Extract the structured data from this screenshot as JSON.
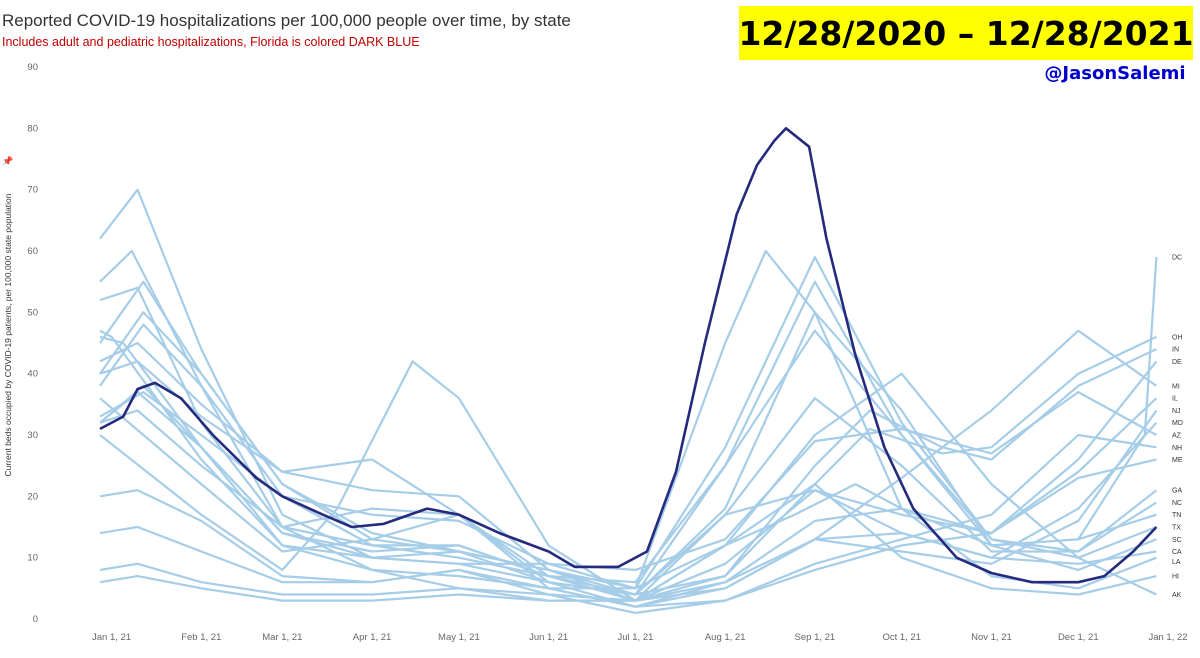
{
  "header": {
    "title": "Reported COVID-19 hospitalizations per 100,000 people over time, by state",
    "subtitle": "Includes adult and pediatric hospitalizations, Florida is colored DARK BLUE",
    "banner": "12/28/2020 – 12/28/2021",
    "handle": "@JasonSalemi"
  },
  "colors": {
    "background_states": "#a6cde8",
    "florida": "#252a7c",
    "banner_bg": "#ffff00",
    "handle": "#0000cc",
    "subtitle": "#c00000"
  },
  "icons": {
    "axis_pin": "pin-icon"
  },
  "chart_data": {
    "type": "line",
    "title": "Reported COVID-19 hospitalizations per 100,000 people over time, by state",
    "subtitle": "Includes adult and pediatric hospitalizations, Florida is colored DARK BLUE",
    "ylabel": "Current beds occupied by COVID-19 patients, per 100,000 state population",
    "ylim": [
      0,
      90
    ],
    "xlim": [
      "2020-12-28",
      "2022-01-01"
    ],
    "y_ticks": [
      0,
      10,
      20,
      30,
      40,
      50,
      60,
      70,
      80,
      90
    ],
    "x_ticks": [
      "Jan 1, 21",
      "Feb 1, 21",
      "Mar 1, 21",
      "Apr 1, 21",
      "May 1, 21",
      "Jun 1, 21",
      "Jul 1, 21",
      "Aug 1, 21",
      "Sep 1, 21",
      "Oct 1, 21",
      "Nov 1, 21",
      "Dec 1, 21",
      "Jan 1, 22"
    ],
    "grid": false,
    "highlight": {
      "name": "FL",
      "x": [
        "2020-12-28",
        "2021-01-05",
        "2021-01-10",
        "2021-01-16",
        "2021-01-25",
        "2021-02-05",
        "2021-02-20",
        "2021-03-01",
        "2021-03-15",
        "2021-03-25",
        "2021-04-05",
        "2021-04-20",
        "2021-05-01",
        "2021-05-15",
        "2021-06-01",
        "2021-06-10",
        "2021-06-25",
        "2021-07-05",
        "2021-07-15",
        "2021-07-25",
        "2021-08-05",
        "2021-08-12",
        "2021-08-18",
        "2021-08-22",
        "2021-08-30",
        "2021-09-05",
        "2021-09-15",
        "2021-09-25",
        "2021-10-05",
        "2021-10-20",
        "2021-11-01",
        "2021-11-15",
        "2021-12-01",
        "2021-12-10",
        "2021-12-20",
        "2021-12-28"
      ],
      "y": [
        31,
        33,
        37.5,
        38.5,
        36,
        30,
        23,
        20,
        17,
        15,
        15.5,
        18,
        17,
        14,
        11,
        8.5,
        8.5,
        11,
        24,
        45,
        66,
        74,
        78,
        80,
        77,
        62,
        43,
        28,
        18,
        10,
        7.5,
        6,
        6,
        7,
        11,
        15
      ]
    },
    "series": [
      {
        "name": "DC",
        "x": [
          "2020-12-28",
          "2021-01-12",
          "2021-02-01",
          "2021-03-01",
          "2021-04-01",
          "2021-05-01",
          "2021-06-01",
          "2021-07-01",
          "2021-08-01",
          "2021-08-25",
          "2021-09-15",
          "2021-10-01",
          "2021-11-01",
          "2021-12-01",
          "2021-12-24",
          "2021-12-28"
        ],
        "y": [
          33,
          37,
          30,
          20,
          17,
          16,
          9,
          5,
          12,
          17,
          22,
          18,
          12,
          13,
          30,
          59
        ]
      },
      {
        "name": "OH",
        "x": [
          "2020-12-28",
          "2021-01-05",
          "2021-02-01",
          "2021-03-01",
          "2021-04-01",
          "2021-05-01",
          "2021-06-01",
          "2021-07-01",
          "2021-08-01",
          "2021-09-01",
          "2021-09-20",
          "2021-10-15",
          "2021-11-01",
          "2021-12-01",
          "2021-12-28"
        ],
        "y": [
          46,
          45,
          28,
          14,
          11,
          12,
          7,
          3,
          7,
          22,
          31,
          27,
          28,
          40,
          46
        ]
      },
      {
        "name": "IN",
        "x": [
          "2020-12-28",
          "2021-01-01",
          "2021-02-01",
          "2021-03-01",
          "2021-04-01",
          "2021-05-01",
          "2021-06-01",
          "2021-07-01",
          "2021-08-01",
          "2021-09-01",
          "2021-09-20",
          "2021-10-15",
          "2021-11-01",
          "2021-12-01",
          "2021-12-28"
        ],
        "y": [
          47,
          46,
          26,
          12,
          10,
          11,
          8,
          4,
          7,
          25,
          34,
          28,
          26,
          38,
          44
        ]
      },
      {
        "name": "DE",
        "x": [
          "2020-12-28",
          "2021-01-10",
          "2021-02-01",
          "2021-03-01",
          "2021-04-01",
          "2021-05-01",
          "2021-06-01",
          "2021-07-01",
          "2021-08-01",
          "2021-09-01",
          "2021-10-01",
          "2021-11-01",
          "2021-12-01",
          "2021-12-28"
        ],
        "y": [
          42,
          45,
          35,
          24,
          21,
          20,
          8,
          3,
          6,
          16,
          18,
          14,
          26,
          42
        ]
      },
      {
        "name": "MI",
        "x": [
          "2020-12-28",
          "2021-02-01",
          "2021-03-01",
          "2021-03-20",
          "2021-04-15",
          "2021-05-01",
          "2021-06-01",
          "2021-07-01",
          "2021-08-01",
          "2021-09-01",
          "2021-10-01",
          "2021-11-01",
          "2021-12-01",
          "2021-12-28"
        ],
        "y": [
          30,
          17,
          8,
          18,
          42,
          36,
          12,
          3,
          5,
          13,
          23,
          34,
          47,
          38
        ]
      },
      {
        "name": "IL",
        "x": [
          "2020-12-28",
          "2021-02-01",
          "2021-03-01",
          "2021-04-01",
          "2021-05-01",
          "2021-06-01",
          "2021-07-01",
          "2021-08-01",
          "2021-09-01",
          "2021-10-01",
          "2021-11-01",
          "2021-12-01",
          "2021-12-28"
        ],
        "y": [
          36,
          22,
          11,
          13,
          17,
          7,
          3,
          9,
          21,
          17,
          14,
          24,
          36
        ]
      },
      {
        "name": "NJ",
        "x": [
          "2020-12-28",
          "2021-01-10",
          "2021-02-01",
          "2021-03-01",
          "2021-04-01",
          "2021-05-01",
          "2021-06-01",
          "2021-07-01",
          "2021-08-01",
          "2021-09-01",
          "2021-10-01",
          "2021-11-01",
          "2021-12-01",
          "2021-12-28"
        ],
        "y": [
          40,
          42,
          33,
          24,
          26,
          17,
          5,
          2,
          6,
          13,
          11,
          9,
          16,
          34
        ]
      },
      {
        "name": "MD",
        "x": [
          "2020-12-28",
          "2021-01-10",
          "2021-02-01",
          "2021-03-01",
          "2021-04-01",
          "2021-05-01",
          "2021-06-01",
          "2021-07-01",
          "2021-08-01",
          "2021-09-01",
          "2021-10-01",
          "2021-11-01",
          "2021-12-01",
          "2021-12-28"
        ],
        "y": [
          32,
          34,
          25,
          15,
          18,
          17,
          6,
          2,
          5,
          13,
          14,
          10,
          18,
          32
        ]
      },
      {
        "name": "AZ",
        "x": [
          "2020-12-28",
          "2021-01-10",
          "2021-02-01",
          "2021-03-01",
          "2021-04-01",
          "2021-05-01",
          "2021-06-01",
          "2021-07-01",
          "2021-08-01",
          "2021-09-01",
          "2021-10-01",
          "2021-11-01",
          "2021-12-01",
          "2021-12-28"
        ],
        "y": [
          62,
          70,
          44,
          17,
          10,
          9,
          9,
          8,
          13,
          29,
          31,
          27,
          37,
          30
        ]
      },
      {
        "name": "NH",
        "x": [
          "2020-12-28",
          "2021-01-10",
          "2021-02-01",
          "2021-03-01",
          "2021-04-01",
          "2021-05-01",
          "2021-06-01",
          "2021-07-01",
          "2021-08-01",
          "2021-09-01",
          "2021-10-01",
          "2021-11-01",
          "2021-12-01",
          "2021-12-28"
        ],
        "y": [
          20,
          21,
          16,
          7,
          6,
          8,
          4,
          1,
          3,
          9,
          13,
          17,
          30,
          28
        ]
      },
      {
        "name": "ME",
        "x": [
          "2020-12-28",
          "2021-01-10",
          "2021-02-01",
          "2021-03-01",
          "2021-04-01",
          "2021-05-01",
          "2021-06-01",
          "2021-07-01",
          "2021-08-01",
          "2021-09-01",
          "2021-10-01",
          "2021-11-01",
          "2021-12-01",
          "2021-12-28"
        ],
        "y": [
          14,
          15,
          11,
          6,
          6,
          8,
          5,
          2,
          3,
          8,
          12,
          14,
          23,
          26
        ]
      },
      {
        "name": "GA",
        "x": [
          "2020-12-28",
          "2021-01-12",
          "2021-02-01",
          "2021-03-01",
          "2021-04-01",
          "2021-05-01",
          "2021-06-01",
          "2021-07-01",
          "2021-08-01",
          "2021-09-01",
          "2021-10-01",
          "2021-11-01",
          "2021-12-01",
          "2021-12-28"
        ],
        "y": [
          45,
          55,
          40,
          22,
          13,
          11,
          8,
          5,
          28,
          59,
          32,
          13,
          11,
          21
        ]
      },
      {
        "name": "NC",
        "x": [
          "2020-12-28",
          "2021-01-12",
          "2021-02-01",
          "2021-03-01",
          "2021-04-01",
          "2021-05-01",
          "2021-06-01",
          "2021-07-01",
          "2021-08-01",
          "2021-09-01",
          "2021-10-01",
          "2021-11-01",
          "2021-12-01",
          "2021-12-28"
        ],
        "y": [
          32,
          38,
          28,
          14,
          10,
          9,
          6,
          4,
          17,
          36,
          25,
          11,
          11,
          19
        ]
      },
      {
        "name": "TN",
        "x": [
          "2020-12-28",
          "2021-01-10",
          "2021-02-01",
          "2021-03-01",
          "2021-04-01",
          "2021-05-01",
          "2021-06-01",
          "2021-07-01",
          "2021-08-01",
          "2021-09-01",
          "2021-10-01",
          "2021-11-01",
          "2021-12-01",
          "2021-12-28"
        ],
        "y": [
          52,
          54,
          32,
          15,
          12,
          12,
          7,
          4,
          25,
          55,
          30,
          12,
          13,
          17
        ]
      },
      {
        "name": "TX",
        "x": [
          "2020-12-28",
          "2021-01-12",
          "2021-02-01",
          "2021-03-01",
          "2021-04-01",
          "2021-05-01",
          "2021-06-01",
          "2021-07-01",
          "2021-08-01",
          "2021-09-01",
          "2021-10-01",
          "2021-11-01",
          "2021-12-01",
          "2021-12-28"
        ],
        "y": [
          38,
          48,
          38,
          20,
          12,
          10,
          7,
          6,
          25,
          47,
          30,
          13,
          10,
          15
        ]
      },
      {
        "name": "SC",
        "x": [
          "2020-12-28",
          "2021-01-12",
          "2021-02-01",
          "2021-03-01",
          "2021-04-01",
          "2021-05-01",
          "2021-06-01",
          "2021-07-01",
          "2021-08-01",
          "2021-09-01",
          "2021-10-01",
          "2021-11-01",
          "2021-12-01",
          "2021-12-28"
        ],
        "y": [
          40,
          50,
          40,
          22,
          14,
          11,
          6,
          4,
          18,
          50,
          34,
          12,
          8,
          13
        ]
      },
      {
        "name": "CA",
        "x": [
          "2020-12-28",
          "2021-01-08",
          "2021-02-01",
          "2021-03-01",
          "2021-04-01",
          "2021-05-01",
          "2021-06-01",
          "2021-07-01",
          "2021-08-01",
          "2021-09-01",
          "2021-10-01",
          "2021-11-01",
          "2021-12-01",
          "2021-12-28"
        ],
        "y": [
          55,
          60,
          38,
          15,
          8,
          5,
          3,
          3,
          17,
          21,
          14,
          10,
          9,
          11
        ]
      },
      {
        "name": "LA",
        "x": [
          "2020-12-28",
          "2021-01-10",
          "2021-02-01",
          "2021-03-01",
          "2021-04-01",
          "2021-05-01",
          "2021-06-01",
          "2021-07-01",
          "2021-08-01",
          "2021-08-15",
          "2021-09-01",
          "2021-10-01",
          "2021-11-01",
          "2021-12-01",
          "2021-12-28"
        ],
        "y": [
          32,
          37,
          28,
          12,
          8,
          7,
          5,
          5,
          45,
          60,
          50,
          18,
          7,
          5,
          10
        ]
      },
      {
        "name": "HI",
        "x": [
          "2020-12-28",
          "2021-01-10",
          "2021-02-01",
          "2021-03-01",
          "2021-04-01",
          "2021-05-01",
          "2021-06-01",
          "2021-07-01",
          "2021-08-01",
          "2021-09-01",
          "2021-10-01",
          "2021-11-01",
          "2021-12-01",
          "2021-12-28"
        ],
        "y": [
          6,
          7,
          5,
          3,
          3,
          4,
          3,
          3,
          12,
          22,
          10,
          5,
          4,
          7
        ]
      },
      {
        "name": "AK",
        "x": [
          "2020-12-28",
          "2021-01-10",
          "2021-02-01",
          "2021-03-01",
          "2021-04-01",
          "2021-05-01",
          "2021-06-01",
          "2021-07-01",
          "2021-08-01",
          "2021-09-01",
          "2021-10-01",
          "2021-11-01",
          "2021-12-01",
          "2021-12-28"
        ],
        "y": [
          8,
          9,
          6,
          4,
          4,
          5,
          4,
          3,
          12,
          30,
          40,
          22,
          10,
          4
        ]
      }
    ]
  }
}
